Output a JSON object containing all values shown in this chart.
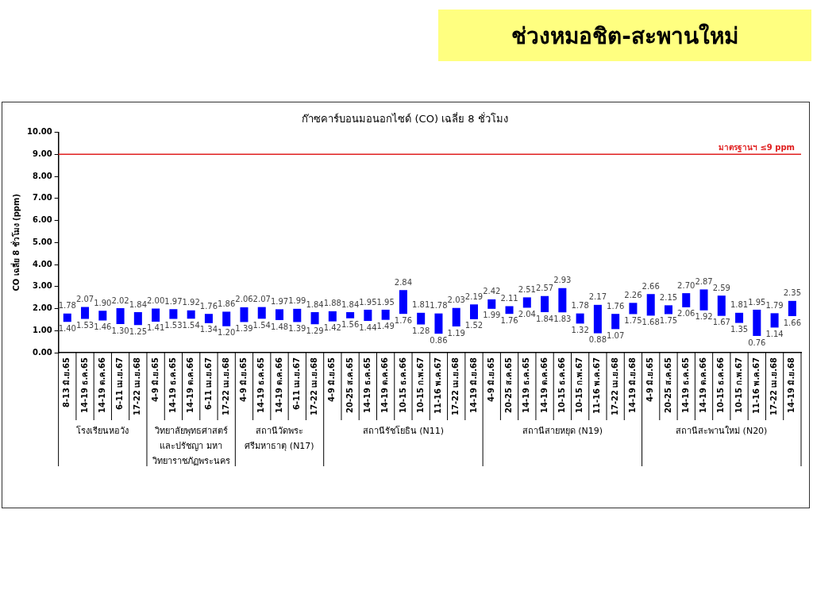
{
  "chart_data": {
    "type": "bar",
    "title": "ช่วงหมอชิต-สะพานใหม่",
    "subtitle": "ก๊าซคาร์บอนมอนอกไซด์ (CO) เฉลี่ย 8 ชั่วโมง",
    "ylabel": "CO เฉลี่ย 8 ชั่วโมง (ppm)",
    "categories": [
      "8-13 มิ.ย.65",
      "14-19 ธ.ค.65",
      "14-19 ต.ค.66",
      "6-11 เม.ย.67",
      "17-22 เม.ย.68",
      "4-9 มิ.ย.65",
      "14-19 ธ.ค.65",
      "14-19 ต.ค.66",
      "6-11 เม.ย.67",
      "17-22 เม.ย.68",
      "4-9 มิ.ย.65",
      "14-19 ธ.ค.65",
      "14-19 ต.ค.66",
      "6-11 เม.ย.67",
      "17-22 เม.ย.68",
      "4-9 มิ.ย.65",
      "20-25 ส.ค.65",
      "14-19 ธ.ค.65",
      "14-19 ต.ค.66",
      "10-15 ธ.ค.66",
      "10-15 ก.พ.67",
      "11-16 พ.ค.67",
      "17-22 เม.ย.68",
      "14-19 มิ.ย.68",
      "4-9 มิ.ย.65",
      "20-25 ส.ค.65",
      "14-19 ธ.ค.65",
      "14-19 ต.ค.66",
      "10-15 ธ.ค.66",
      "10-15 ก.พ.67",
      "11-16 พ.ค.67",
      "17-22 เม.ย.68",
      "14-19 มิ.ย.68",
      "4-9 มิ.ย.65",
      "20-25 ส.ค.65",
      "14-19 ธ.ค.65",
      "14-19 ต.ค.66",
      "10-15 ธ.ค.66",
      "10-15 ก.พ.67",
      "11-16 พ.ค.67",
      "17-22 เม.ย.68",
      "14-19 มิ.ย.68"
    ],
    "base": [
      1.4,
      1.53,
      1.46,
      1.3,
      1.25,
      1.41,
      1.53,
      1.54,
      1.34,
      1.2,
      1.39,
      1.54,
      1.48,
      1.39,
      1.29,
      1.42,
      1.56,
      1.44,
      1.49,
      1.76,
      1.28,
      0.86,
      1.19,
      1.52,
      1.99,
      1.76,
      2.04,
      1.84,
      1.83,
      1.32,
      0.88,
      1.07,
      1.75,
      1.68,
      1.75,
      2.06,
      1.92,
      1.67,
      1.35,
      0.76,
      1.14,
      1.66
    ],
    "values": [
      0.38,
      0.54,
      0.44,
      0.72,
      0.59,
      0.59,
      0.44,
      0.38,
      0.42,
      0.66,
      0.67,
      0.53,
      0.49,
      0.6,
      0.55,
      0.46,
      0.28,
      0.51,
      0.46,
      1.08,
      0.53,
      0.92,
      0.84,
      0.67,
      0.43,
      0.35,
      0.47,
      0.73,
      1.1,
      0.46,
      1.29,
      0.69,
      0.51,
      0.98,
      0.4,
      0.64,
      0.95,
      0.92,
      0.46,
      1.19,
      0.65,
      0.69
    ],
    "color": "#0000ff",
    "ylim": [
      0,
      10
    ],
    "yticks": [
      {
        "value": 0,
        "label": "0.00"
      },
      {
        "value": 1,
        "label": "1.00"
      },
      {
        "value": 2,
        "label": "2.00"
      },
      {
        "value": 3,
        "label": "3.00"
      },
      {
        "value": 4,
        "label": "4.00"
      },
      {
        "value": 5,
        "label": "5.00"
      },
      {
        "value": 6,
        "label": "6.00"
      },
      {
        "value": 7,
        "label": "7.00"
      },
      {
        "value": 8,
        "label": "8.00"
      },
      {
        "value": 9,
        "label": "9.00"
      },
      {
        "value": 10,
        "label": "10.00"
      }
    ],
    "ref_lines": [
      {
        "axis": "y",
        "value": 9,
        "label": "มาตรฐานฯ ≤9 ppm",
        "color": "#e02020"
      }
    ],
    "grid": false,
    "legend": false,
    "annotations": [
      "1.78",
      "1.40",
      "2.07",
      "1.53",
      "1.90",
      "1.46",
      "2.02",
      "1.30",
      "1.84",
      "1.25",
      "2.00",
      "1.41",
      "1.97",
      "1.53",
      "1.92",
      "1.54",
      "1.76",
      "1.34",
      "1.86",
      "1.20",
      "2.06",
      "1.39",
      "2.07",
      "1.54",
      "1.97",
      "1.48",
      "1.99",
      "1.39",
      "1.84",
      "1.29",
      "1.88",
      "1.42",
      "1.84",
      "1.56",
      "1.95",
      "1.44",
      "1.95",
      "1.49",
      "2.84",
      "1.76",
      "1.81",
      "1.28",
      "1.78",
      "0.86",
      "2.03",
      "1.19",
      "2.19",
      "1.52",
      "2.42",
      "1.99",
      "2.11",
      "1.76",
      "2.51",
      "2.04",
      "2.57",
      "1.84",
      "2.93",
      "1.83",
      "1.78",
      "1.32",
      "2.17",
      "0.88",
      "1.76",
      "1.07",
      "2.26",
      "1.75",
      "2.66",
      "1.68",
      "2.15",
      "1.75",
      "2.70",
      "2.06",
      "2.87",
      "1.92",
      "2.59",
      "1.67",
      "1.81",
      "1.35",
      "1.95",
      "0.76",
      "1.79",
      "1.14",
      "2.35",
      "1.66",
      "โรงเรียนหอวัง",
      "วิทยาลัยพุทธศาสตร์และปรัชญา มหาวิทยาราชภัฏพระนคร",
      "สถานีวัดพระศรีมหาธาตุ (N17)",
      "สถานีรัชโยธิน (N11)",
      "สถานีสายหยุด (N19)",
      "สถานีสะพานใหม่ (N20)"
    ]
  }
}
